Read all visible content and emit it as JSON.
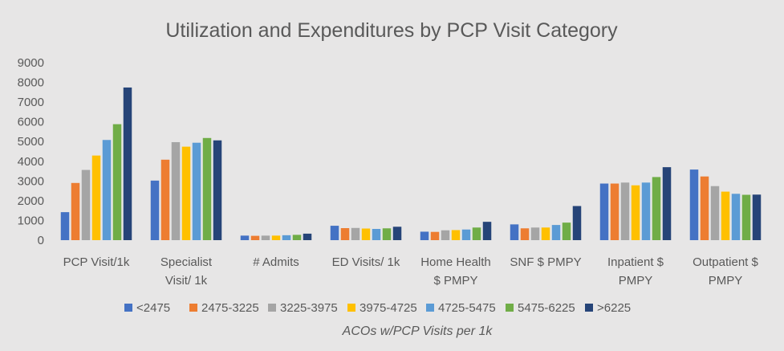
{
  "chart_data": {
    "type": "bar",
    "title": "Utilization and Expenditures by PCP Visit Category",
    "xlabel": "ACOs w/PCP Visits per 1k",
    "ylabel": "",
    "ylim": [
      0,
      9000
    ],
    "yticks": [
      0,
      1000,
      2000,
      3000,
      4000,
      5000,
      6000,
      7000,
      8000,
      9000
    ],
    "grid": false,
    "legend_position": "bottom",
    "categories": [
      [
        "PCP Visit/1k"
      ],
      [
        "Specialist",
        "Visit/ 1k"
      ],
      [
        "# Admits"
      ],
      [
        "ED Visits/ 1k"
      ],
      [
        "Home Health",
        "$ PMPY"
      ],
      [
        "SNF $ PMPY"
      ],
      [
        "Inpatient $",
        "PMPY"
      ],
      [
        "Outpatient $",
        "PMPY"
      ]
    ],
    "series": [
      {
        "name": "<2475",
        "color": "#4472c4",
        "values": [
          1420,
          3020,
          230,
          730,
          430,
          800,
          2870,
          3580
        ]
      },
      {
        "name": "2475-3225",
        "color": "#ed7d31",
        "values": [
          2900,
          4080,
          220,
          610,
          420,
          600,
          2870,
          3230
        ]
      },
      {
        "name": "3225-3975",
        "color": "#a5a5a5",
        "values": [
          3560,
          4970,
          230,
          620,
          500,
          640,
          2920,
          2740
        ]
      },
      {
        "name": "3975-4725",
        "color": "#ffc000",
        "values": [
          4290,
          4740,
          230,
          590,
          510,
          640,
          2780,
          2460
        ]
      },
      {
        "name": "4725-5475",
        "color": "#5b9bd5",
        "values": [
          5080,
          4940,
          250,
          570,
          540,
          770,
          2920,
          2350
        ]
      },
      {
        "name": "5475-6225",
        "color": "#70ad47",
        "values": [
          5880,
          5180,
          270,
          600,
          640,
          890,
          3200,
          2300
        ]
      },
      {
        "name": ">6225",
        "color": "#264478",
        "values": [
          7740,
          5060,
          330,
          680,
          930,
          1730,
          3700,
          2310
        ]
      }
    ]
  }
}
